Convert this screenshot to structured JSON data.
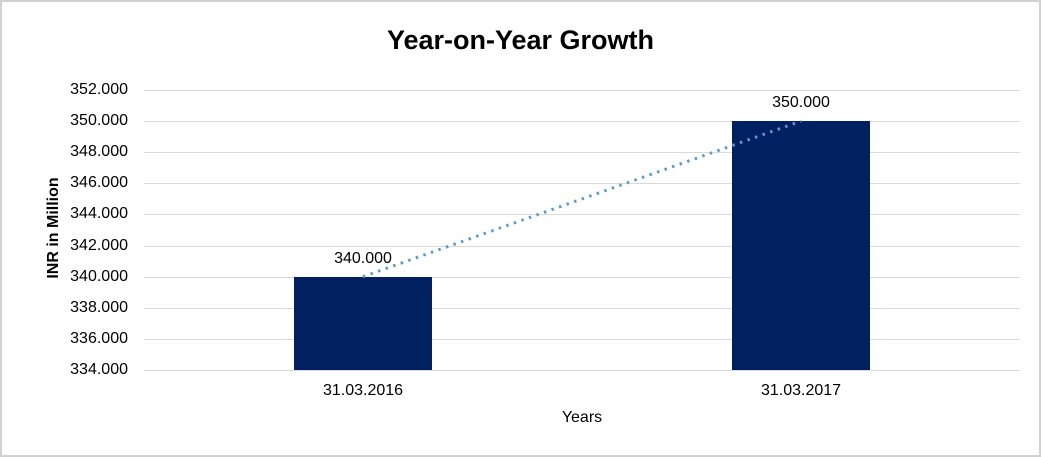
{
  "chart_data": {
    "type": "bar",
    "title": "Year-on-Year Growth",
    "xlabel": "Years",
    "ylabel": "INR in Million",
    "categories": [
      "31.03.2016",
      "31.03.2017"
    ],
    "series": [
      {
        "name": "INR in Million",
        "values": [
          340000,
          350000
        ],
        "value_labels": [
          "340.000",
          "350.000"
        ]
      }
    ],
    "trendline": {
      "style": "dotted",
      "color": "#5b9bd5",
      "values": [
        340000,
        350000
      ]
    },
    "ylim": [
      334000,
      352000
    ],
    "ytick_step": 2000,
    "ytick_labels": [
      "352.000",
      "350.000",
      "348.000",
      "346.000",
      "344.000",
      "342.000",
      "340.000",
      "338.000",
      "336.000",
      "334.000"
    ],
    "grid": true,
    "legend": "none",
    "bar_color": "#002060",
    "gridline_color": "#d9d9d9",
    "text_color": "#000000"
  }
}
